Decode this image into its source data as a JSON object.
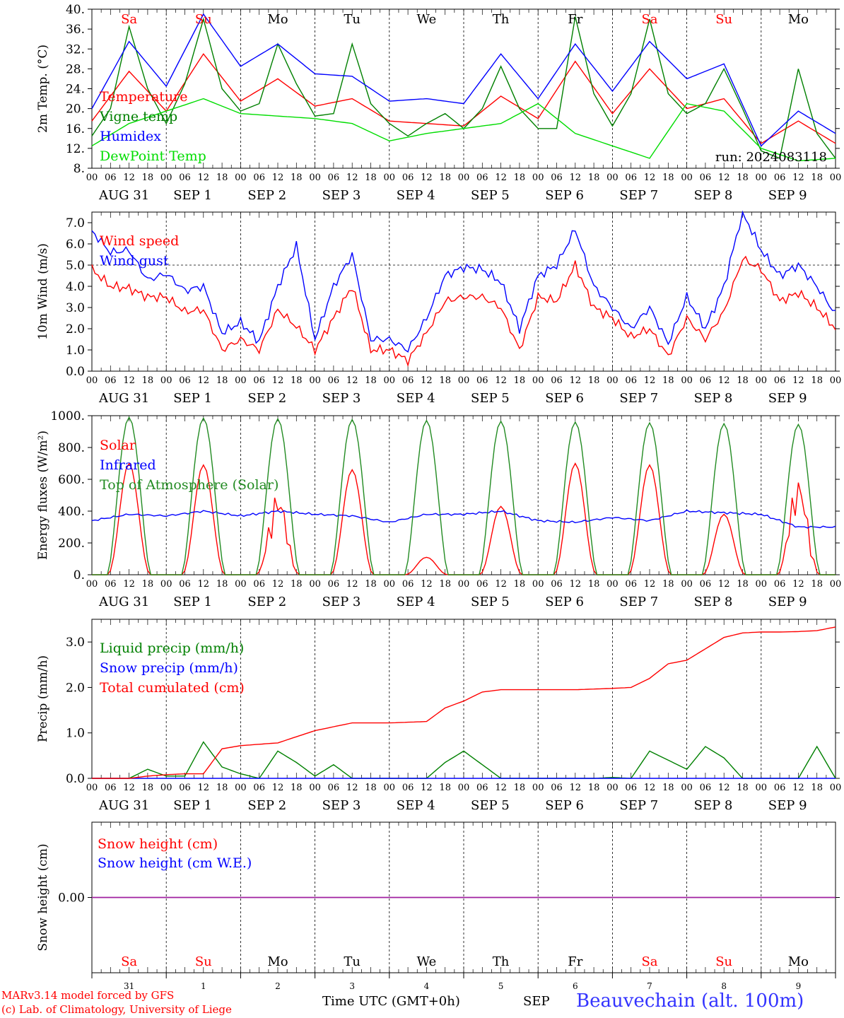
{
  "chart_data": [
    {
      "type": "line",
      "ylabel": "2m Temp. (°C)",
      "ylim": [
        8,
        40
      ],
      "yticks": [
        "8.",
        "12.",
        "16.",
        "20.",
        "24.",
        "28.",
        "32.",
        "36.",
        "40."
      ],
      "run_label": "run: 2024083118",
      "weekday_labels": [
        "Sa",
        "Su",
        "Mo",
        "Tu",
        "We",
        "Th",
        "Fr",
        "Sa",
        "Su",
        "Mo"
      ],
      "weekend_color": "#ff0000",
      "series": [
        {
          "name": "Temperature",
          "color": "#ff0000",
          "x": [
            0,
            12,
            24,
            36,
            48,
            60,
            72,
            84,
            96,
            108,
            120,
            132,
            144,
            156,
            168,
            180,
            192,
            204,
            216,
            228,
            240
          ],
          "y": [
            17.5,
            27.5,
            19.5,
            31,
            21.5,
            26,
            20.5,
            22,
            17.5,
            17,
            16.5,
            22.5,
            18,
            29.5,
            19,
            28,
            20,
            22,
            13,
            17.5,
            13
          ]
        },
        {
          "name": "Vigne temp",
          "color": "#008000",
          "x": [
            0,
            6,
            12,
            18,
            24,
            30,
            36,
            42,
            48,
            54,
            60,
            66,
            72,
            78,
            84,
            90,
            96,
            102,
            108,
            114,
            120,
            126,
            132,
            138,
            144,
            150,
            156,
            162,
            168,
            174,
            180,
            186,
            192,
            198,
            204,
            210,
            216,
            222,
            228,
            234,
            240
          ],
          "y": [
            14.5,
            20,
            36.5,
            24,
            17,
            25,
            38,
            24,
            19.5,
            21,
            33,
            25,
            18.5,
            19,
            33,
            21,
            17,
            14.5,
            17,
            19,
            16,
            20,
            28.5,
            20,
            16,
            16,
            38.5,
            23,
            16.5,
            23,
            38,
            23,
            19,
            21,
            28,
            20,
            11.5,
            10,
            28,
            15,
            10
          ]
        },
        {
          "name": "Humidex",
          "color": "#0000ff",
          "x": [
            0,
            12,
            24,
            36,
            48,
            60,
            72,
            84,
            96,
            108,
            120,
            132,
            144,
            156,
            168,
            180,
            192,
            204,
            216,
            228,
            240
          ],
          "y": [
            20,
            33.5,
            24.5,
            39,
            28.5,
            33,
            27,
            26.5,
            21.5,
            22,
            21,
            31,
            22,
            33,
            23.5,
            33.5,
            26,
            29,
            12.5,
            19.5,
            15
          ]
        },
        {
          "name": "DewPoint Temp",
          "color": "#00dd00",
          "x": [
            0,
            12,
            24,
            36,
            48,
            60,
            72,
            84,
            96,
            108,
            120,
            132,
            144,
            156,
            168,
            180,
            192,
            204,
            216,
            228,
            240
          ],
          "y": [
            12.5,
            17,
            19.5,
            22,
            19,
            18.5,
            18,
            17,
            13.5,
            15,
            16,
            17,
            21,
            15,
            12.5,
            10,
            21,
            19.5,
            12,
            9.5,
            10
          ]
        }
      ]
    },
    {
      "type": "line",
      "ylabel": "10m Wind (m/s)",
      "ylim": [
        0,
        7.5
      ],
      "yticks": [
        "0.0",
        "1.0",
        "2.0",
        "3.0",
        "4.0",
        "5.0",
        "6.0",
        "7.0"
      ],
      "reference_line": 5.0,
      "series": [
        {
          "name": "Wind speed",
          "color": "#ff0000",
          "x": [
            0,
            6,
            12,
            18,
            24,
            30,
            36,
            42,
            48,
            54,
            60,
            66,
            72,
            78,
            84,
            90,
            96,
            102,
            108,
            114,
            120,
            126,
            132,
            138,
            144,
            150,
            156,
            162,
            168,
            174,
            180,
            186,
            192,
            198,
            204,
            210,
            216,
            222,
            228,
            234,
            240
          ],
          "y": [
            4.8,
            4.0,
            3.9,
            3.5,
            3.5,
            2.8,
            2.9,
            1.0,
            1.5,
            1.0,
            2.9,
            2.1,
            1.0,
            2.5,
            4.0,
            1.0,
            1.0,
            0.5,
            1.8,
            3.3,
            3.5,
            3.5,
            3.0,
            1.0,
            3.5,
            3.3,
            5.0,
            3.0,
            2.5,
            1.6,
            2.0,
            0.7,
            2.5,
            1.5,
            2.8,
            5.3,
            4.8,
            3.3,
            3.7,
            3.0,
            2.0
          ]
        },
        {
          "name": "Wind gust",
          "color": "#0000ff",
          "x": [
            0,
            6,
            12,
            18,
            24,
            30,
            36,
            42,
            48,
            54,
            60,
            66,
            72,
            78,
            84,
            90,
            96,
            102,
            108,
            114,
            120,
            126,
            132,
            138,
            144,
            150,
            156,
            162,
            168,
            174,
            180,
            186,
            192,
            198,
            204,
            210,
            216,
            222,
            228,
            234,
            240
          ],
          "y": [
            6.6,
            5.6,
            5.7,
            4.3,
            4.6,
            3.8,
            4.0,
            1.8,
            2.3,
            1.4,
            4.0,
            5.9,
            1.5,
            4.0,
            5.5,
            1.5,
            1.5,
            1.0,
            2.5,
            4.5,
            4.9,
            4.8,
            4.2,
            2.0,
            4.5,
            5.0,
            6.7,
            4.0,
            3.0,
            2.0,
            3.0,
            1.3,
            3.5,
            2.0,
            4.0,
            7.5,
            5.7,
            4.5,
            5.0,
            4.0,
            2.7
          ]
        }
      ]
    },
    {
      "type": "line",
      "ylabel": "Energy fluxes (W/m²)",
      "ylim": [
        0,
        1000
      ],
      "yticks": [
        "0.",
        "200.",
        "400.",
        "600.",
        "800.",
        "1000."
      ],
      "series": [
        {
          "name": "Solar",
          "color": "#ff0000",
          "day_peaks": [
            700,
            690,
            520,
            660,
            110,
            430,
            700,
            690,
            380,
            610
          ]
        },
        {
          "name": "Infrared",
          "color": "#0000ff",
          "x": [
            0,
            12,
            24,
            36,
            48,
            60,
            72,
            84,
            96,
            108,
            120,
            132,
            144,
            156,
            168,
            180,
            192,
            204,
            216,
            228,
            240
          ],
          "y": [
            340,
            380,
            370,
            400,
            370,
            400,
            380,
            370,
            330,
            380,
            380,
            400,
            340,
            330,
            360,
            340,
            400,
            390,
            380,
            300,
            300
          ]
        },
        {
          "name": "Top of Atmosphere (Solar)",
          "color": "#228b22",
          "day_peaks": [
            990,
            985,
            980,
            975,
            970,
            965,
            960,
            955,
            950,
            945
          ]
        }
      ]
    },
    {
      "type": "line",
      "ylabel": "Precip (mm/h)",
      "ylim": [
        0,
        3.5
      ],
      "yticks": [
        "0.0",
        "1.0",
        "2.0",
        "3.0"
      ],
      "series": [
        {
          "name": "Liquid precip (mm/h)",
          "color": "#008000",
          "x": [
            0,
            12,
            18,
            24,
            30,
            36,
            42,
            48,
            54,
            60,
            66,
            72,
            78,
            84,
            90,
            96,
            108,
            114,
            120,
            126,
            132,
            144,
            162,
            168,
            174,
            180,
            186,
            192,
            198,
            204,
            210,
            216,
            222,
            228,
            234,
            240
          ],
          "y": [
            0,
            0,
            0.2,
            0.05,
            0.05,
            0.8,
            0.25,
            0.1,
            0,
            0.6,
            0.35,
            0.05,
            0.3,
            0,
            0,
            0,
            0,
            0.35,
            0.6,
            0.3,
            0,
            0,
            0,
            0.02,
            0,
            0.6,
            0.4,
            0.2,
            0.7,
            0.45,
            0,
            0,
            0,
            0,
            0.7,
            0
          ]
        },
        {
          "name": "Snow precip (mm/h)",
          "color": "#0000ff",
          "x": [
            0,
            240
          ],
          "y": [
            0,
            0
          ]
        },
        {
          "name": "Total cumulated (cm)",
          "color": "#ff0000",
          "x": [
            0,
            12,
            18,
            24,
            30,
            36,
            42,
            48,
            60,
            72,
            84,
            96,
            108,
            114,
            120,
            126,
            132,
            144,
            156,
            168,
            174,
            180,
            186,
            192,
            198,
            204,
            210,
            216,
            222,
            228,
            234,
            240
          ],
          "y": [
            0,
            0,
            0.05,
            0.08,
            0.1,
            0.1,
            0.65,
            0.72,
            0.78,
            1.05,
            1.22,
            1.22,
            1.25,
            1.55,
            1.7,
            1.9,
            1.95,
            1.95,
            1.95,
            1.98,
            2.0,
            2.2,
            2.52,
            2.6,
            2.85,
            3.1,
            3.2,
            3.22,
            3.22,
            3.23,
            3.25,
            3.33
          ]
        }
      ]
    },
    {
      "type": "line",
      "ylabel": "Snow height (cm)",
      "ylim": [
        -1,
        1
      ],
      "yticks": [
        "0.00"
      ],
      "series": [
        {
          "name": "Snow height (cm)",
          "color": "#ff0000",
          "x": [
            0,
            240
          ],
          "y": [
            0,
            0
          ]
        },
        {
          "name": "Snow height (cm W.E.)",
          "color": "#0000ff",
          "x": [
            0,
            240
          ],
          "y": [
            0,
            0
          ]
        }
      ]
    }
  ],
  "hour_ticks": [
    "00",
    "06",
    "12",
    "18"
  ],
  "date_labels": [
    "AUG 31",
    "SEP  1",
    "SEP  2",
    "SEP  3",
    "SEP  4",
    "SEP  5",
    "SEP  6",
    "SEP  7",
    "SEP  8",
    "SEP  9"
  ],
  "bottom_day_numbers": [
    "31",
    "1",
    "2",
    "3",
    "4",
    "5",
    "6",
    "7",
    "8",
    "9"
  ],
  "footer": {
    "model_credit": "MARv3.14 model forced by GFS",
    "copyright": "(c) Lab. of Climatology, University of Liege",
    "xlabel": "Time UTC (GMT+0h)",
    "month": "SEP",
    "station": "Beauvechain (alt. 100m)"
  }
}
